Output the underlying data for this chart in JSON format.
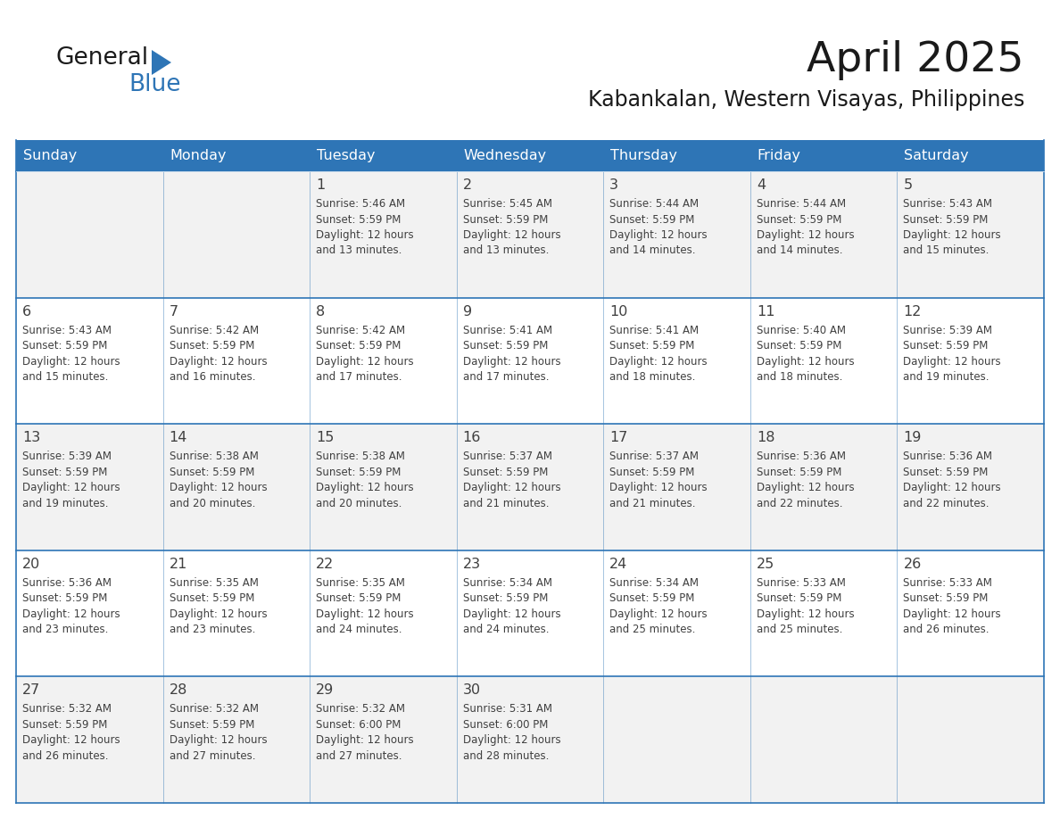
{
  "title": "April 2025",
  "subtitle": "Kabankalan, Western Visayas, Philippines",
  "header_bg_color": "#2E75B6",
  "header_text_color": "#FFFFFF",
  "row_bg_odd": "#F2F2F2",
  "row_bg_even": "#FFFFFF",
  "text_color": "#404040",
  "border_color": "#2E75B6",
  "logo_black": "#1A1A1A",
  "logo_blue": "#2E75B6",
  "days_of_week": [
    "Sunday",
    "Monday",
    "Tuesday",
    "Wednesday",
    "Thursday",
    "Friday",
    "Saturday"
  ],
  "calendar_data": [
    [
      {
        "day": "",
        "info": ""
      },
      {
        "day": "",
        "info": ""
      },
      {
        "day": "1",
        "info": "Sunrise: 5:46 AM\nSunset: 5:59 PM\nDaylight: 12 hours\nand 13 minutes."
      },
      {
        "day": "2",
        "info": "Sunrise: 5:45 AM\nSunset: 5:59 PM\nDaylight: 12 hours\nand 13 minutes."
      },
      {
        "day": "3",
        "info": "Sunrise: 5:44 AM\nSunset: 5:59 PM\nDaylight: 12 hours\nand 14 minutes."
      },
      {
        "day": "4",
        "info": "Sunrise: 5:44 AM\nSunset: 5:59 PM\nDaylight: 12 hours\nand 14 minutes."
      },
      {
        "day": "5",
        "info": "Sunrise: 5:43 AM\nSunset: 5:59 PM\nDaylight: 12 hours\nand 15 minutes."
      }
    ],
    [
      {
        "day": "6",
        "info": "Sunrise: 5:43 AM\nSunset: 5:59 PM\nDaylight: 12 hours\nand 15 minutes."
      },
      {
        "day": "7",
        "info": "Sunrise: 5:42 AM\nSunset: 5:59 PM\nDaylight: 12 hours\nand 16 minutes."
      },
      {
        "day": "8",
        "info": "Sunrise: 5:42 AM\nSunset: 5:59 PM\nDaylight: 12 hours\nand 17 minutes."
      },
      {
        "day": "9",
        "info": "Sunrise: 5:41 AM\nSunset: 5:59 PM\nDaylight: 12 hours\nand 17 minutes."
      },
      {
        "day": "10",
        "info": "Sunrise: 5:41 AM\nSunset: 5:59 PM\nDaylight: 12 hours\nand 18 minutes."
      },
      {
        "day": "11",
        "info": "Sunrise: 5:40 AM\nSunset: 5:59 PM\nDaylight: 12 hours\nand 18 minutes."
      },
      {
        "day": "12",
        "info": "Sunrise: 5:39 AM\nSunset: 5:59 PM\nDaylight: 12 hours\nand 19 minutes."
      }
    ],
    [
      {
        "day": "13",
        "info": "Sunrise: 5:39 AM\nSunset: 5:59 PM\nDaylight: 12 hours\nand 19 minutes."
      },
      {
        "day": "14",
        "info": "Sunrise: 5:38 AM\nSunset: 5:59 PM\nDaylight: 12 hours\nand 20 minutes."
      },
      {
        "day": "15",
        "info": "Sunrise: 5:38 AM\nSunset: 5:59 PM\nDaylight: 12 hours\nand 20 minutes."
      },
      {
        "day": "16",
        "info": "Sunrise: 5:37 AM\nSunset: 5:59 PM\nDaylight: 12 hours\nand 21 minutes."
      },
      {
        "day": "17",
        "info": "Sunrise: 5:37 AM\nSunset: 5:59 PM\nDaylight: 12 hours\nand 21 minutes."
      },
      {
        "day": "18",
        "info": "Sunrise: 5:36 AM\nSunset: 5:59 PM\nDaylight: 12 hours\nand 22 minutes."
      },
      {
        "day": "19",
        "info": "Sunrise: 5:36 AM\nSunset: 5:59 PM\nDaylight: 12 hours\nand 22 minutes."
      }
    ],
    [
      {
        "day": "20",
        "info": "Sunrise: 5:36 AM\nSunset: 5:59 PM\nDaylight: 12 hours\nand 23 minutes."
      },
      {
        "day": "21",
        "info": "Sunrise: 5:35 AM\nSunset: 5:59 PM\nDaylight: 12 hours\nand 23 minutes."
      },
      {
        "day": "22",
        "info": "Sunrise: 5:35 AM\nSunset: 5:59 PM\nDaylight: 12 hours\nand 24 minutes."
      },
      {
        "day": "23",
        "info": "Sunrise: 5:34 AM\nSunset: 5:59 PM\nDaylight: 12 hours\nand 24 minutes."
      },
      {
        "day": "24",
        "info": "Sunrise: 5:34 AM\nSunset: 5:59 PM\nDaylight: 12 hours\nand 25 minutes."
      },
      {
        "day": "25",
        "info": "Sunrise: 5:33 AM\nSunset: 5:59 PM\nDaylight: 12 hours\nand 25 minutes."
      },
      {
        "day": "26",
        "info": "Sunrise: 5:33 AM\nSunset: 5:59 PM\nDaylight: 12 hours\nand 26 minutes."
      }
    ],
    [
      {
        "day": "27",
        "info": "Sunrise: 5:32 AM\nSunset: 5:59 PM\nDaylight: 12 hours\nand 26 minutes."
      },
      {
        "day": "28",
        "info": "Sunrise: 5:32 AM\nSunset: 5:59 PM\nDaylight: 12 hours\nand 27 minutes."
      },
      {
        "day": "29",
        "info": "Sunrise: 5:32 AM\nSunset: 6:00 PM\nDaylight: 12 hours\nand 27 minutes."
      },
      {
        "day": "30",
        "info": "Sunrise: 5:31 AM\nSunset: 6:00 PM\nDaylight: 12 hours\nand 28 minutes."
      },
      {
        "day": "",
        "info": ""
      },
      {
        "day": "",
        "info": ""
      },
      {
        "day": "",
        "info": ""
      }
    ]
  ]
}
